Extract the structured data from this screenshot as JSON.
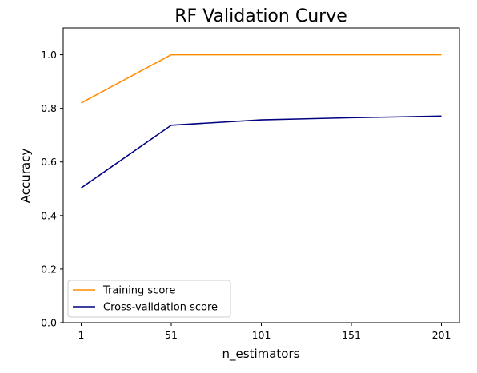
{
  "chart_data": {
    "type": "line",
    "title": "RF Validation Curve",
    "xlabel": "n_estimators",
    "ylabel": "Accuracy",
    "xlim": [
      -9,
      211
    ],
    "ylim": [
      0.0,
      1.1
    ],
    "x_ticks": [
      1,
      51,
      101,
      151,
      201
    ],
    "y_ticks": [
      0.0,
      0.2,
      0.4,
      0.6,
      0.8,
      1.0
    ],
    "x_tick_labels": [
      "1",
      "51",
      "101",
      "151",
      "201"
    ],
    "y_tick_labels": [
      "0.0",
      "0.2",
      "0.4",
      "0.6",
      "0.8",
      "1.0"
    ],
    "x": [
      1,
      51,
      101,
      151,
      201
    ],
    "series": [
      {
        "name": "Training score",
        "color": "#ff8c00",
        "values": [
          0.82,
          1.0,
          1.0,
          1.0,
          1.0
        ]
      },
      {
        "name": "Cross-validation score",
        "color": "#000080",
        "values": [
          0.503,
          0.737,
          0.757,
          0.765,
          0.771
        ]
      }
    ],
    "grid": false,
    "legend_position": "lower-left"
  }
}
